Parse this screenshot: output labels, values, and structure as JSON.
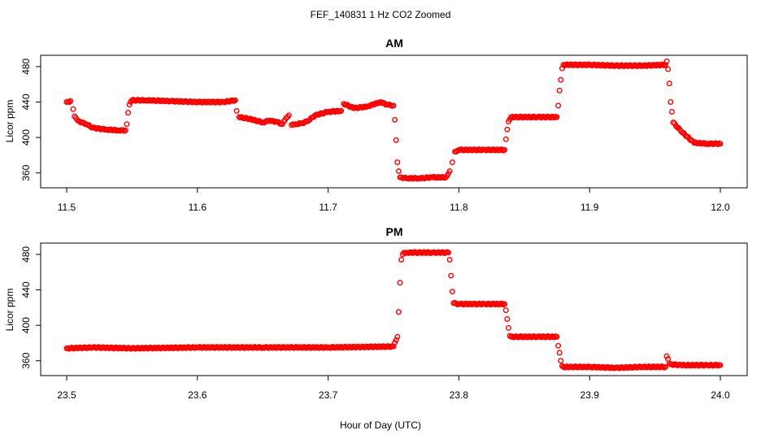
{
  "figure": {
    "title": "FEF_140831  1 Hz CO2 Zoomed",
    "xlabel": "Hour of Day (UTC)"
  },
  "style": {
    "point_color": "#ff0000",
    "frame_color": "#000000"
  },
  "chart_data": [
    {
      "type": "scatter",
      "title": "AM",
      "ylabel": "Licor ppm",
      "xlim": [
        11.5,
        12.0
      ],
      "ylim": [
        346,
        490
      ],
      "xticks": [
        11.5,
        11.6,
        11.7,
        11.8,
        11.9,
        12.0
      ],
      "xtick_labels": [
        "11.5",
        "11.6",
        "11.7",
        "11.8",
        "11.9",
        "12.0"
      ],
      "yticks": [
        360,
        400,
        440,
        480
      ],
      "ytick_labels": [
        "360",
        "400",
        "440",
        "480"
      ],
      "grid": false,
      "series": [
        {
          "x": [
            11.5,
            11.503,
            11.505,
            11.506,
            11.508,
            11.51,
            11.515,
            11.52,
            11.53,
            11.54,
            11.545,
            11.546,
            11.547,
            11.548,
            11.55,
            11.56,
            11.58,
            11.6,
            11.62,
            11.629,
            11.63,
            11.632,
            11.64,
            11.65,
            11.655,
            11.66,
            11.665,
            11.668,
            11.67,
            11.672,
            11.675,
            11.68,
            11.685,
            11.69,
            11.7,
            11.71,
            11.712,
            11.72,
            11.73,
            11.74,
            11.745,
            11.75,
            11.751,
            11.752,
            11.753,
            11.754,
            11.755,
            11.76,
            11.77,
            11.78,
            11.79,
            11.793,
            11.795,
            11.797,
            11.8,
            11.82,
            11.835,
            11.836,
            11.837,
            11.838,
            11.84,
            11.86,
            11.875,
            11.876,
            11.877,
            11.878,
            11.879,
            11.88,
            11.9,
            11.92,
            11.94,
            11.958,
            11.959,
            11.96,
            11.961,
            11.962,
            11.963,
            11.964,
            11.97,
            11.98,
            11.99,
            12.0
          ],
          "y": [
            440,
            441,
            432,
            424,
            420,
            418,
            415,
            411,
            409,
            408,
            408,
            415,
            428,
            437,
            442,
            442,
            441,
            440,
            440,
            442,
            430,
            423,
            421,
            417,
            419,
            418,
            415,
            422,
            425,
            414,
            415,
            416,
            419,
            425,
            429,
            430,
            438,
            433,
            435,
            440,
            437,
            436,
            420,
            397,
            372,
            362,
            355,
            354,
            354,
            355,
            355,
            362,
            372,
            384,
            386,
            386,
            386,
            398,
            409,
            418,
            423,
            423,
            423,
            436,
            453,
            465,
            478,
            482,
            482,
            481,
            481,
            482,
            486,
            477,
            461,
            440,
            429,
            417,
            407,
            394,
            393,
            393
          ]
        }
      ]
    },
    {
      "type": "scatter",
      "title": "PM",
      "ylabel": "Licor ppm",
      "xlim": [
        23.5,
        24.0
      ],
      "ylim": [
        346,
        490
      ],
      "xticks": [
        23.5,
        23.6,
        23.7,
        23.8,
        23.9,
        24.0
      ],
      "xtick_labels": [
        "23.5",
        "23.6",
        "23.7",
        "23.8",
        "23.9",
        "24.0"
      ],
      "yticks": [
        360,
        400,
        440,
        480
      ],
      "ytick_labels": [
        "360",
        "400",
        "440",
        "480"
      ],
      "grid": false,
      "series": [
        {
          "x": [
            23.5,
            23.52,
            23.55,
            23.6,
            23.65,
            23.7,
            23.75,
            23.753,
            23.754,
            23.755,
            23.756,
            23.757,
            23.758,
            23.76,
            23.78,
            23.792,
            23.793,
            23.794,
            23.795,
            23.796,
            23.8,
            23.82,
            23.835,
            23.836,
            23.837,
            23.838,
            23.839,
            23.84,
            23.86,
            23.875,
            23.876,
            23.877,
            23.878,
            23.879,
            23.88,
            23.9,
            23.92,
            23.94,
            23.958,
            23.959,
            23.96,
            23.961,
            23.962,
            23.97,
            23.99,
            24.0
          ],
          "y": [
            374,
            375,
            374,
            375,
            375,
            375,
            376,
            387,
            415,
            448,
            474,
            480,
            482,
            482,
            482,
            482,
            474,
            456,
            438,
            425,
            424,
            424,
            424,
            417,
            407,
            397,
            388,
            387,
            387,
            387,
            377,
            369,
            360,
            354,
            353,
            353,
            352,
            353,
            353,
            365,
            362,
            357,
            356,
            355,
            355,
            355
          ]
        }
      ]
    }
  ]
}
